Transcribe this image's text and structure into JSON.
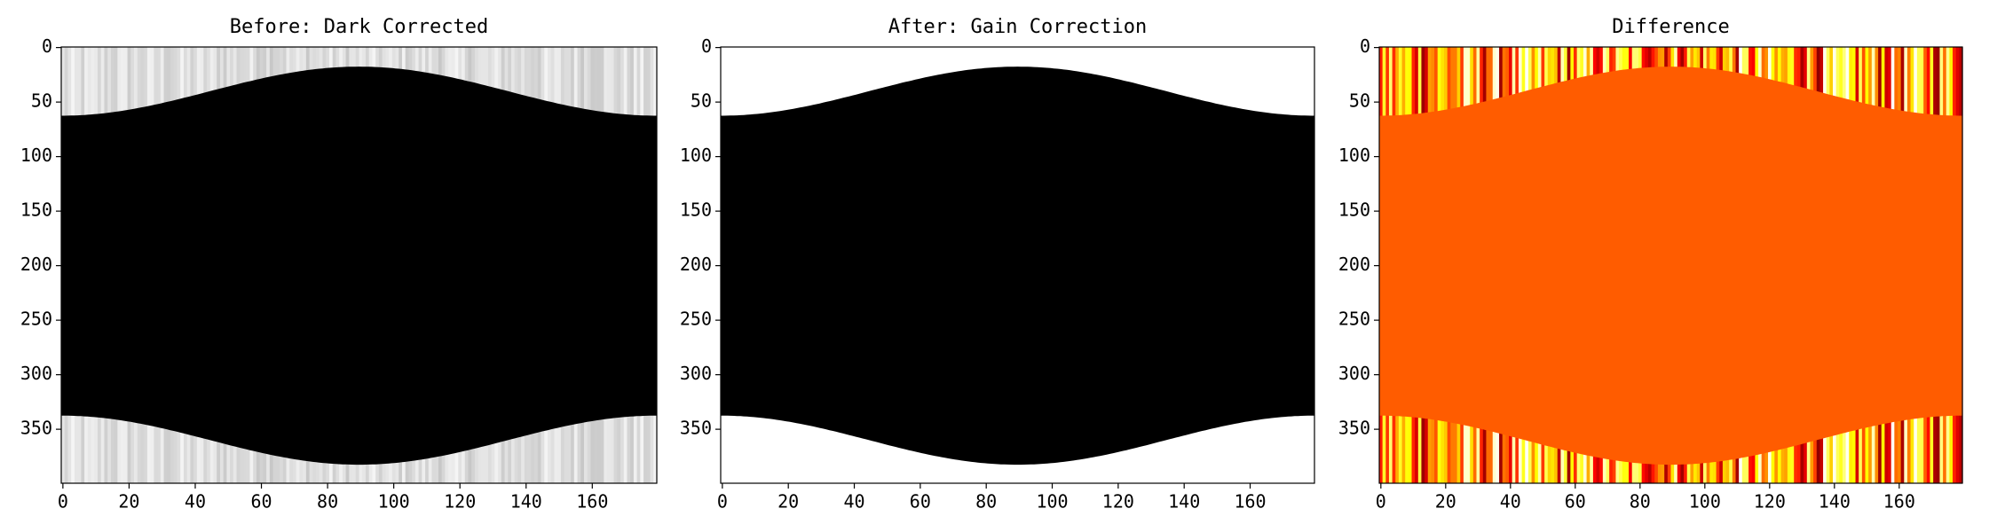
{
  "chart_data": [
    {
      "type": "image",
      "title": "Before: Dark Corrected",
      "colormap": "gray",
      "xlim": [
        -0.5,
        179.5
      ],
      "ylim": [
        399.5,
        -0.5
      ],
      "xticks": [
        0,
        20,
        40,
        60,
        80,
        100,
        120,
        140,
        160
      ],
      "yticks": [
        0,
        50,
        100,
        150,
        200,
        250,
        300,
        350
      ]
    },
    {
      "type": "image",
      "title": "After: Gain Correction",
      "colormap": "gray",
      "xlim": [
        -0.5,
        179.5
      ],
      "ylim": [
        399.5,
        -0.5
      ],
      "xticks": [
        0,
        20,
        40,
        60,
        80,
        100,
        120,
        140,
        160
      ],
      "yticks": [
        0,
        50,
        100,
        150,
        200,
        250,
        300,
        350
      ]
    },
    {
      "type": "image",
      "title": "Difference",
      "colormap": "hot",
      "xlim": [
        -0.5,
        179.5
      ],
      "ylim": [
        399.5,
        -0.5
      ],
      "xticks": [
        0,
        20,
        40,
        60,
        80,
        100,
        120,
        140,
        160
      ],
      "yticks": [
        0,
        50,
        100,
        150,
        200,
        250,
        300,
        350
      ]
    }
  ]
}
